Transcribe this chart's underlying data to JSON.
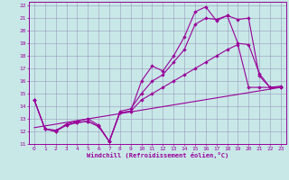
{
  "xlabel": "Windchill (Refroidissement éolien,°C)",
  "background_color": "#c8e8e8",
  "grid_color": "#9999bb",
  "line_color": "#990099",
  "xlim": [
    -0.5,
    23.5
  ],
  "ylim": [
    11,
    22.3
  ],
  "xticks": [
    0,
    1,
    2,
    3,
    4,
    5,
    6,
    7,
    8,
    9,
    10,
    11,
    12,
    13,
    14,
    15,
    16,
    17,
    18,
    19,
    20,
    21,
    22,
    23
  ],
  "yticks": [
    11,
    12,
    13,
    14,
    15,
    16,
    17,
    18,
    19,
    20,
    21,
    22
  ],
  "line1_x": [
    0,
    1,
    2,
    3,
    4,
    5,
    6,
    7,
    8,
    9,
    10,
    11,
    12,
    13,
    14,
    15,
    16,
    17,
    18,
    19,
    20,
    21,
    22,
    23
  ],
  "line1_y": [
    14.5,
    12.2,
    12.0,
    12.5,
    12.7,
    12.8,
    12.4,
    11.2,
    13.5,
    13.6,
    16.0,
    17.2,
    16.8,
    18.0,
    19.5,
    21.5,
    21.9,
    20.8,
    21.2,
    20.9,
    21.0,
    16.4,
    15.5,
    15.5
  ],
  "line2_x": [
    0,
    1,
    2,
    3,
    4,
    5,
    6,
    7,
    8,
    9,
    10,
    11,
    12,
    13,
    14,
    15,
    16,
    17,
    18,
    19,
    20,
    21,
    22,
    23
  ],
  "line2_y": [
    14.5,
    12.2,
    12.0,
    12.6,
    12.8,
    13.0,
    12.5,
    11.2,
    13.6,
    13.8,
    15.0,
    16.0,
    16.5,
    17.5,
    18.5,
    20.5,
    21.0,
    20.9,
    21.2,
    19.0,
    18.9,
    16.6,
    15.5,
    15.6
  ],
  "line3_x": [
    0,
    1,
    2,
    3,
    4,
    5,
    6,
    7,
    8,
    9,
    10,
    11,
    12,
    13,
    14,
    15,
    16,
    17,
    18,
    19,
    20,
    21,
    22,
    23
  ],
  "line3_y": [
    14.5,
    12.2,
    12.1,
    12.5,
    12.7,
    12.8,
    12.4,
    11.2,
    13.5,
    13.6,
    14.5,
    15.0,
    15.5,
    16.0,
    16.5,
    17.0,
    17.5,
    18.0,
    18.5,
    18.9,
    15.5,
    15.5,
    15.5,
    15.5
  ],
  "line4_x": [
    0,
    23
  ],
  "line4_y": [
    12.3,
    15.5
  ]
}
